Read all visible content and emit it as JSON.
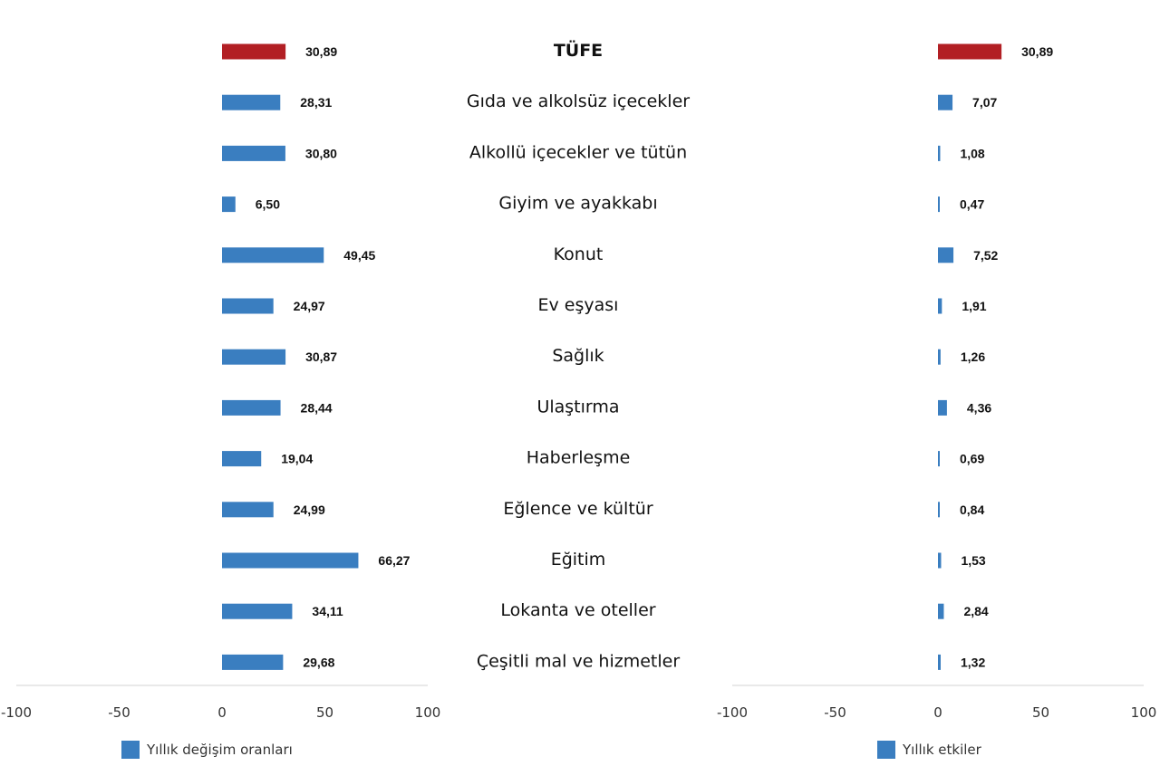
{
  "chart_data": {
    "type": "bar",
    "orientation": "horizontal",
    "categories": [
      "TÜFE",
      "Gıda ve alkolsüz içecekler",
      "Alkollü içecekler ve tütün",
      "Giyim ve ayakkabı",
      "Konut",
      "Ev eşyası",
      "Sağlık",
      "Ulaştırma",
      "Haberleşme",
      "Eğlence ve kültür",
      "Eğitim",
      "Lokanta ve oteller",
      "Çeşitli mal ve hizmetler"
    ],
    "value_labels": {
      "left": [
        "30,89",
        "28,31",
        "30,80",
        "6,50",
        "49,45",
        "24,97",
        "30,87",
        "28,44",
        "19,04",
        "24,99",
        "66,27",
        "34,11",
        "29,68"
      ],
      "right": [
        "30,89",
        "7,07",
        "1,08",
        "0,47",
        "7,52",
        "1,91",
        "1,26",
        "4,36",
        "0,69",
        "0,84",
        "1,53",
        "2,84",
        "1,32"
      ]
    },
    "series": [
      {
        "name": "Yıllık değişim oranları",
        "values": [
          30.89,
          28.31,
          30.8,
          6.5,
          49.45,
          24.97,
          30.87,
          28.44,
          19.04,
          24.99,
          66.27,
          34.11,
          29.68
        ]
      },
      {
        "name": "Yıllık etkiler",
        "values": [
          30.89,
          7.07,
          1.08,
          0.47,
          7.52,
          1.91,
          1.26,
          4.36,
          0.69,
          0.84,
          1.53,
          2.84,
          1.32
        ]
      }
    ],
    "xlim": [
      -100,
      100
    ],
    "xticks": [
      "-100",
      "-50",
      "0",
      "50",
      "100"
    ],
    "legend_placement": "bottom",
    "grid": false,
    "colors": {
      "highlight": "#B21F24",
      "bar": "#3A7EC0",
      "axis": "#E2E2E2",
      "label": "#111111",
      "tick": "#333333"
    }
  }
}
